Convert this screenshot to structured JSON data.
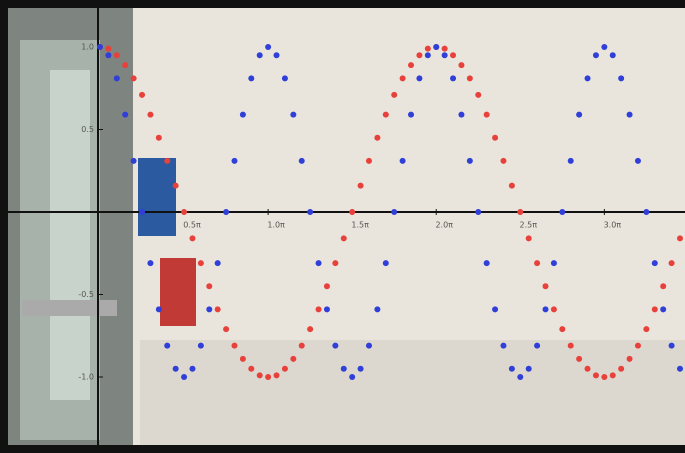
{
  "chart_data": {
    "type": "scatter",
    "x": [
      0,
      0.05,
      0.1,
      0.15,
      0.2,
      0.25,
      0.3,
      0.35,
      0.4,
      0.45,
      0.5,
      0.55,
      0.6,
      0.65,
      0.7,
      0.75,
      0.8,
      0.85,
      0.9,
      0.95,
      1,
      1.05,
      1.1,
      1.15,
      1.2,
      1.25,
      1.3,
      1.35,
      1.4,
      1.45,
      1.5,
      1.55,
      1.6,
      1.65,
      1.7,
      1.75,
      1.8,
      1.85,
      1.9,
      1.95,
      2,
      2.05,
      2.1,
      2.15,
      2.2,
      2.25,
      2.3,
      2.35,
      2.4,
      2.45,
      2.5,
      2.55,
      2.6,
      2.65,
      2.7,
      2.75,
      2.8,
      2.85,
      2.9,
      2.95,
      3,
      3.05,
      3.1,
      3.15,
      3.2,
      3.25,
      3.3,
      3.35,
      3.4,
      3.45
    ],
    "series": [
      {
        "color": "#e8403a",
        "values": [
          1,
          0.99,
          0.95,
          0.89,
          0.81,
          0.71,
          0.59,
          0.45,
          0.31,
          0.16,
          0,
          -0.16,
          -0.31,
          -0.45,
          -0.59,
          -0.71,
          -0.81,
          -0.89,
          -0.95,
          -0.99,
          -1,
          -0.99,
          -0.95,
          -0.89,
          -0.81,
          -0.71,
          -0.59,
          -0.45,
          -0.31,
          -0.16,
          0,
          0.16,
          0.31,
          0.45,
          0.59,
          0.71,
          0.81,
          0.89,
          0.95,
          0.99,
          1,
          0.99,
          0.95,
          0.89,
          0.81,
          0.71,
          0.59,
          0.45,
          0.31,
          0.16,
          0,
          -0.16,
          -0.31,
          -0.45,
          -0.59,
          -0.71,
          -0.81,
          -0.89,
          -0.95,
          -0.99,
          -1,
          -0.99,
          -0.95,
          -0.89,
          -0.81,
          -0.71,
          -0.59,
          -0.45,
          -0.31,
          -0.16
        ]
      },
      {
        "color": "#2f3fd8",
        "values": [
          1,
          0.95,
          0.81,
          0.59,
          0.31,
          0,
          -0.31,
          -0.59,
          -0.81,
          -0.95,
          -1,
          -0.95,
          -0.81,
          -0.59,
          -0.31,
          0,
          0.31,
          0.59,
          0.81,
          0.95,
          1,
          0.95,
          0.81,
          0.59,
          0.31,
          0,
          -0.31,
          -0.59,
          -0.81,
          -0.95,
          -1,
          -0.95,
          -0.81,
          -0.59,
          -0.31,
          0,
          0.31,
          0.59,
          0.81,
          0.95,
          1,
          0.95,
          0.81,
          0.59,
          0.31,
          0,
          -0.31,
          -0.59,
          -0.81,
          -0.95,
          -1,
          -0.95,
          -0.81,
          -0.59,
          -0.31,
          0,
          0.31,
          0.59,
          0.81,
          0.95,
          1,
          0.95,
          0.81,
          0.59,
          0.31,
          0,
          -0.31,
          -0.59,
          -0.81,
          -0.95
        ]
      }
    ],
    "xlim": [
      0,
      3.45
    ],
    "ylim": [
      -1.1,
      1.1
    ],
    "xticks": [
      {
        "value": 0.5,
        "label": "0.5π"
      },
      {
        "value": 1,
        "label": "1.0π"
      },
      {
        "value": 1.5,
        "label": "1.5π"
      },
      {
        "value": 2,
        "label": "2.0π"
      },
      {
        "value": 2.5,
        "label": "2.5π"
      },
      {
        "value": 3,
        "label": "3.0π"
      }
    ],
    "yticks": [
      {
        "value": 1,
        "label": "1.0"
      },
      0.5,
      -0.5,
      {
        "value": -1,
        "label": "-1.0"
      }
    ]
  }
}
